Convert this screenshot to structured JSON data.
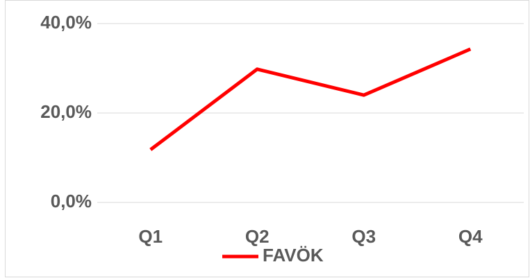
{
  "chart_data": {
    "type": "line",
    "categories": [
      "Q1",
      "Q2",
      "Q3",
      "Q4"
    ],
    "series": [
      {
        "name": "FAVÖK",
        "color": "#ff0000",
        "values": [
          11.8,
          29.8,
          24.0,
          34.3
        ]
      }
    ],
    "ylim": [
      0,
      40
    ],
    "yticks": [
      {
        "value": 0,
        "label": "0,0%"
      },
      {
        "value": 20,
        "label": "20,0%"
      },
      {
        "value": 40,
        "label": "40,0%"
      }
    ],
    "grid": true,
    "legend": "bottom"
  }
}
